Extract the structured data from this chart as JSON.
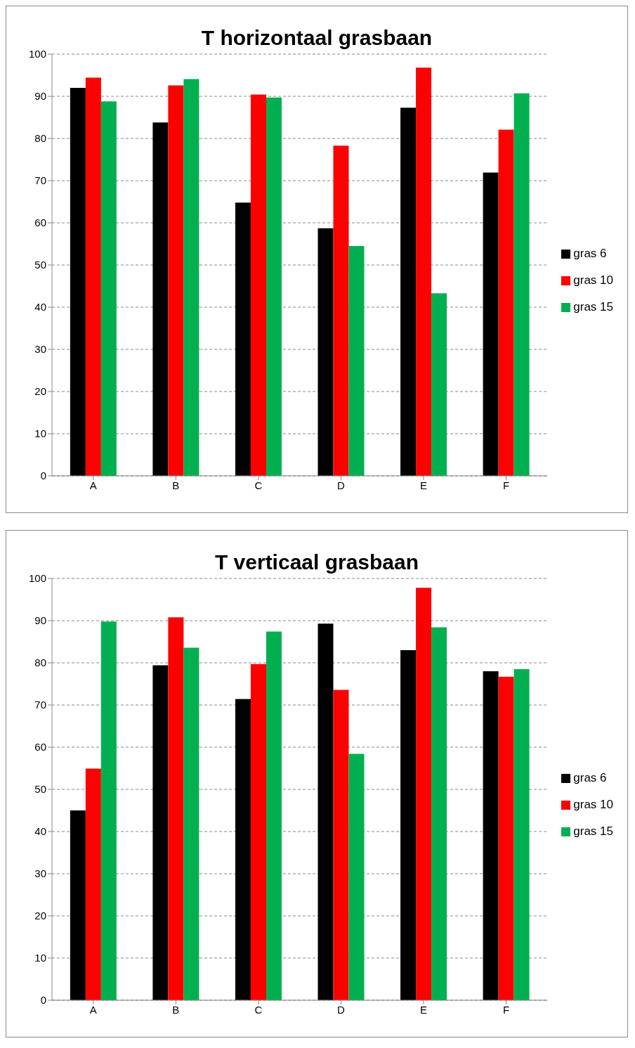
{
  "chart_data": [
    {
      "type": "bar",
      "title": "T horizontaal grasbaan",
      "categories": [
        "A",
        "B",
        "C",
        "D",
        "E",
        "F"
      ],
      "series": [
        {
          "name": "gras 6",
          "color": "#000000",
          "values": [
            92,
            83.8,
            64.8,
            58.7,
            87.3,
            71.9
          ]
        },
        {
          "name": "gras 10",
          "color": "#ff0000",
          "values": [
            94.4,
            92.6,
            90.4,
            78.3,
            96.8,
            82.1
          ]
        },
        {
          "name": "gras 15",
          "color": "#00b050",
          "values": [
            88.8,
            94.1,
            89.7,
            54.5,
            43.3,
            90.7
          ]
        }
      ],
      "ylim": [
        0,
        100
      ],
      "yticks": [
        0,
        10,
        20,
        30,
        40,
        50,
        60,
        70,
        80,
        90,
        100
      ],
      "grid": "y",
      "legend": "right"
    },
    {
      "type": "bar",
      "title": "T verticaal grasbaan",
      "categories": [
        "A",
        "B",
        "C",
        "D",
        "E",
        "F"
      ],
      "series": [
        {
          "name": "gras 6",
          "color": "#000000",
          "values": [
            45,
            79.4,
            71.4,
            89.3,
            83,
            78
          ]
        },
        {
          "name": "gras 10",
          "color": "#ff0000",
          "values": [
            54.9,
            90.8,
            79.7,
            73.6,
            97.8,
            76.7
          ]
        },
        {
          "name": "gras 15",
          "color": "#00b050",
          "values": [
            89.8,
            83.6,
            87.4,
            58.4,
            88.4,
            78.5
          ]
        }
      ],
      "ylim": [
        0,
        100
      ],
      "yticks": [
        0,
        10,
        20,
        30,
        40,
        50,
        60,
        70,
        80,
        90,
        100
      ],
      "grid": "y",
      "legend": "right"
    }
  ]
}
